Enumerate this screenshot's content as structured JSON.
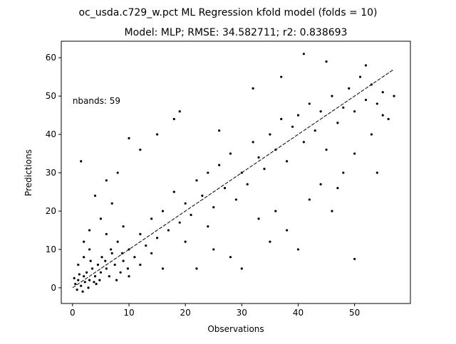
{
  "chart_data": {
    "type": "scatter",
    "suptitle": "oc_usda.c729_w.pct ML Regression kfold model (folds = 10)",
    "title": "Model: MLP; RMSE: 34.582711; r2: 0.838693",
    "x_label": "Observations",
    "y_label": "Predictions",
    "annotation": {
      "text": "nbands: 59",
      "x": 0,
      "y": 48
    },
    "color": "#000000",
    "xlim": [
      -2,
      59.9
    ],
    "ylim": [
      -4.1,
      64.3
    ],
    "xticks": [
      0,
      10,
      20,
      30,
      40,
      50
    ],
    "yticks": [
      0,
      10,
      20,
      30,
      40,
      50,
      60
    ],
    "reference_line": {
      "x": [
        0,
        57
      ],
      "values": [
        0,
        57
      ],
      "color": "#000000"
    },
    "x": [
      0.5,
      1,
      1.5,
      2,
      2.5,
      3,
      3.5,
      4,
      4.5,
      5,
      1,
      2,
      3,
      0.8,
      1.2,
      2.2,
      3.2,
      4.2,
      5.2,
      6,
      6.5,
      7,
      7.5,
      8,
      8.5,
      9,
      10,
      11,
      12,
      13,
      14,
      15,
      16,
      17,
      18,
      19,
      20,
      21,
      22,
      23,
      24,
      25,
      26,
      27,
      28,
      29,
      30,
      31,
      32,
      33,
      34,
      35,
      36,
      37,
      38,
      39,
      40,
      41,
      42,
      43,
      44,
      45,
      46,
      47,
      48,
      49,
      50,
      51,
      52,
      53,
      54,
      55,
      56,
      57,
      41,
      45,
      52,
      50,
      40,
      38,
      46,
      30,
      35,
      28,
      44,
      48,
      50,
      22,
      25,
      15,
      18,
      12,
      10,
      19,
      1.5,
      4,
      6,
      8,
      3,
      5,
      7,
      9,
      2,
      6,
      10,
      12,
      14,
      16,
      20,
      24,
      32,
      37,
      42,
      47,
      53,
      55,
      54,
      33,
      26,
      36,
      0.3,
      1.8,
      2.8,
      3.8,
      4.8,
      5.8,
      6.8,
      7.8,
      8.8,
      9.8
    ],
    "values": [
      1,
      2,
      0.5,
      3,
      4,
      2,
      5,
      3,
      6,
      4,
      6,
      8,
      10,
      -0.5,
      3.5,
      1.5,
      7,
      1,
      8,
      5,
      3,
      9,
      6,
      12,
      4,
      7,
      10,
      8,
      14,
      11,
      18,
      13,
      20,
      15,
      25,
      17,
      22,
      19,
      28,
      24,
      30,
      21,
      32,
      26,
      35,
      23,
      30,
      27,
      38,
      34,
      31,
      40,
      36,
      44,
      33,
      42,
      45,
      38,
      48,
      41,
      46,
      36,
      50,
      43,
      47,
      52,
      46,
      55,
      49,
      53,
      48,
      51,
      44,
      50,
      61,
      59,
      58,
      7.5,
      10,
      15,
      20,
      5,
      12,
      8,
      27,
      30,
      35,
      5,
      10,
      40,
      44,
      36,
      39,
      46,
      33,
      24,
      28,
      30,
      15,
      18,
      22,
      16,
      12,
      14,
      3,
      6,
      9,
      5,
      12,
      16,
      52,
      55,
      23,
      26,
      40,
      45,
      30,
      18,
      41,
      20,
      2.5,
      -1,
      0,
      1.5,
      2,
      7,
      10,
      2,
      9,
      5
    ]
  }
}
